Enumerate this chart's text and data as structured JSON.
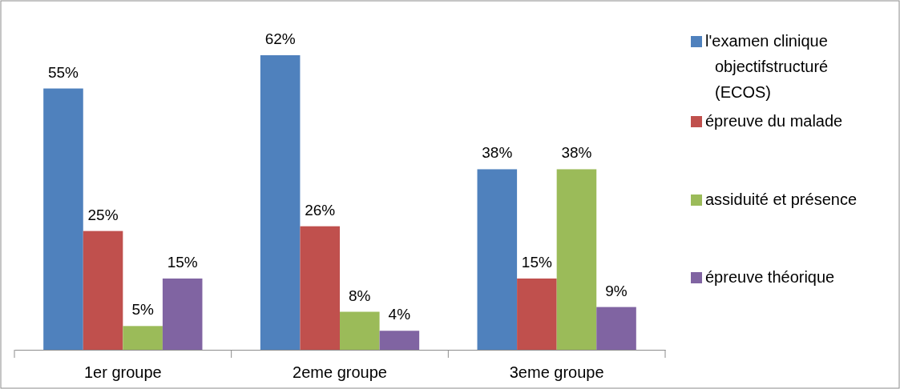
{
  "chart_data": {
    "type": "bar",
    "categories": [
      "1er groupe",
      "2eme groupe",
      "3eme groupe"
    ],
    "legend": "right",
    "series": [
      {
        "name": "l'examen clinique objectifstructuré (ECOS)",
        "color": "#4f81bd",
        "values": [
          55,
          62,
          38
        ],
        "value_labels": [
          "55%",
          "62%",
          "38%"
        ]
      },
      {
        "name": "épreuve du malade",
        "color": "#c0504d",
        "values": [
          25,
          26,
          15
        ],
        "value_labels": [
          "25%",
          "26%",
          "15%"
        ]
      },
      {
        "name": "assiduité et présence",
        "color": "#9bbb59",
        "values": [
          5,
          8,
          38
        ],
        "value_labels": [
          "5%",
          "8%",
          "38%"
        ]
      },
      {
        "name": "épreuve théorique",
        "color": "#8064a2",
        "values": [
          15,
          4,
          9
        ],
        "value_labels": [
          "15%",
          "4%",
          "9%"
        ]
      }
    ]
  }
}
